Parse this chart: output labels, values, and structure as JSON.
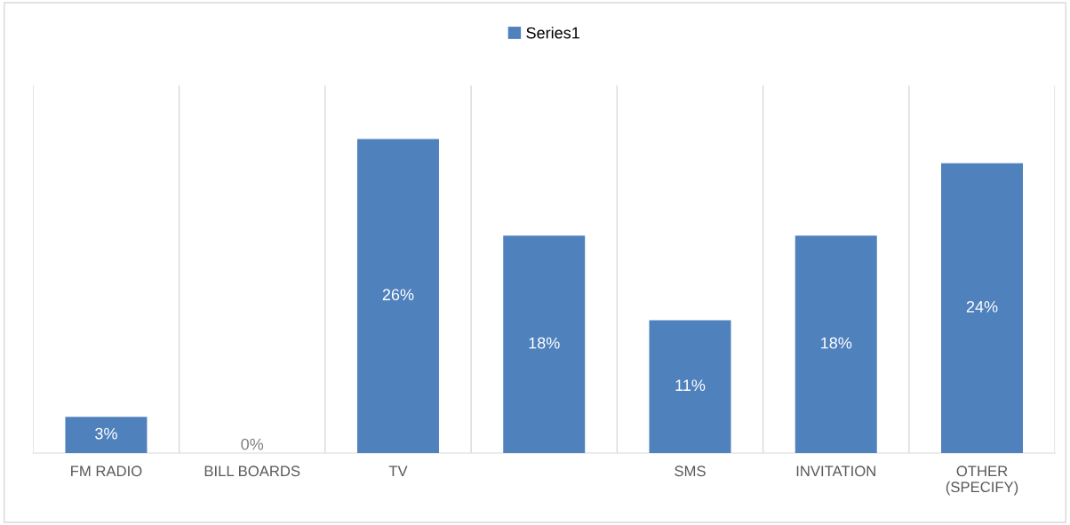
{
  "chart_data": {
    "type": "bar",
    "categories": [
      "FM RADIO",
      "BILL BOARDS",
      "TV",
      null,
      "SMS",
      "INVITATION",
      "OTHER (SPECIFY)"
    ],
    "series": [
      {
        "name": "Series1",
        "color": "#4f81bd",
        "values": [
          3,
          0,
          26,
          18,
          11,
          18,
          24
        ],
        "value_labels": [
          "3%",
          "0%",
          "26%",
          "18%",
          "11%",
          "18%",
          "24%"
        ]
      }
    ],
    "grid": "x",
    "legend": "top",
    "tick_labels": "x"
  }
}
